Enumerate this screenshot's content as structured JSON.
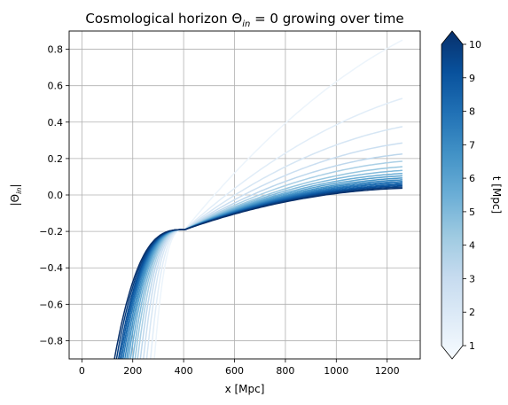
{
  "title_prefix": "Cosmological horizon Θ",
  "title_subscript": "in",
  "title_suffix": " = 0 growing over time",
  "ylabel_prefix": "|Θ",
  "ylabel_subscript": "in",
  "ylabel_suffix": "|",
  "colorbar_label": "t [Mpc]",
  "colorbar_ticks": [
    "1",
    "2",
    "3",
    "4",
    "5",
    "6",
    "7",
    "8",
    "9",
    "10"
  ],
  "colormap": "Blues",
  "colormap_stops": [
    "#f7fbff",
    "#deebf7",
    "#c6dbef",
    "#9ecae1",
    "#6baed6",
    "#4292c6",
    "#2171b5",
    "#08519c",
    "#08306b"
  ],
  "chart_data": {
    "type": "line",
    "title": "Cosmological horizon Θin = 0 growing over time",
    "xlabel": "x [Mpc]",
    "ylabel": "|Θin|",
    "xlim": [
      -50,
      1330
    ],
    "ylim": [
      -0.9,
      0.9
    ],
    "x_ticks": [
      "0",
      "200",
      "400",
      "600",
      "800",
      "1000",
      "1200"
    ],
    "y_ticks": [
      "−0.8",
      "−0.6",
      "−0.4",
      "−0.2",
      "0.0",
      "0.2",
      "0.4",
      "0.6",
      "0.8"
    ],
    "grid": true,
    "colorbar_range": [
      1,
      10
    ],
    "x_max": 1260,
    "series": [
      {
        "t": 1.5,
        "x_at_bottom": 285,
        "cross_x": 405,
        "cross_y": -0.19,
        "end_y": 0.85
      },
      {
        "t": 2.0,
        "x_at_bottom": 270,
        "cross_x": 405,
        "cross_y": -0.19,
        "end_y": 0.53
      },
      {
        "t": 2.5,
        "x_at_bottom": 255,
        "cross_x": 405,
        "cross_y": -0.19,
        "end_y": 0.375
      },
      {
        "t": 3.0,
        "x_at_bottom": 242,
        "cross_x": 405,
        "cross_y": -0.19,
        "end_y": 0.285
      },
      {
        "t": 3.5,
        "x_at_bottom": 230,
        "cross_x": 405,
        "cross_y": -0.19,
        "end_y": 0.225
      },
      {
        "t": 4.0,
        "x_at_bottom": 219,
        "cross_x": 405,
        "cross_y": -0.19,
        "end_y": 0.185
      },
      {
        "t": 4.5,
        "x_at_bottom": 209,
        "cross_x": 405,
        "cross_y": -0.19,
        "end_y": 0.155
      },
      {
        "t": 5.0,
        "x_at_bottom": 200,
        "cross_x": 405,
        "cross_y": -0.19,
        "end_y": 0.135
      },
      {
        "t": 5.5,
        "x_at_bottom": 191,
        "cross_x": 405,
        "cross_y": -0.19,
        "end_y": 0.118
      },
      {
        "t": 6.0,
        "x_at_bottom": 183,
        "cross_x": 405,
        "cross_y": -0.19,
        "end_y": 0.105
      },
      {
        "t": 6.5,
        "x_at_bottom": 176,
        "cross_x": 405,
        "cross_y": -0.19,
        "end_y": 0.093
      },
      {
        "t": 7.0,
        "x_at_bottom": 169,
        "cross_x": 405,
        "cross_y": -0.19,
        "end_y": 0.083
      },
      {
        "t": 7.5,
        "x_at_bottom": 162,
        "cross_x": 405,
        "cross_y": -0.19,
        "end_y": 0.074
      },
      {
        "t": 8.0,
        "x_at_bottom": 156,
        "cross_x": 405,
        "cross_y": -0.19,
        "end_y": 0.066
      },
      {
        "t": 8.5,
        "x_at_bottom": 150,
        "cross_x": 405,
        "cross_y": -0.19,
        "end_y": 0.058
      },
      {
        "t": 9.0,
        "x_at_bottom": 144,
        "cross_x": 405,
        "cross_y": -0.19,
        "end_y": 0.051
      },
      {
        "t": 9.5,
        "x_at_bottom": 136,
        "cross_x": 405,
        "cross_y": -0.19,
        "end_y": 0.044
      },
      {
        "t": 10.0,
        "x_at_bottom": 128,
        "cross_x": 405,
        "cross_y": -0.19,
        "end_y": 0.037
      }
    ]
  }
}
